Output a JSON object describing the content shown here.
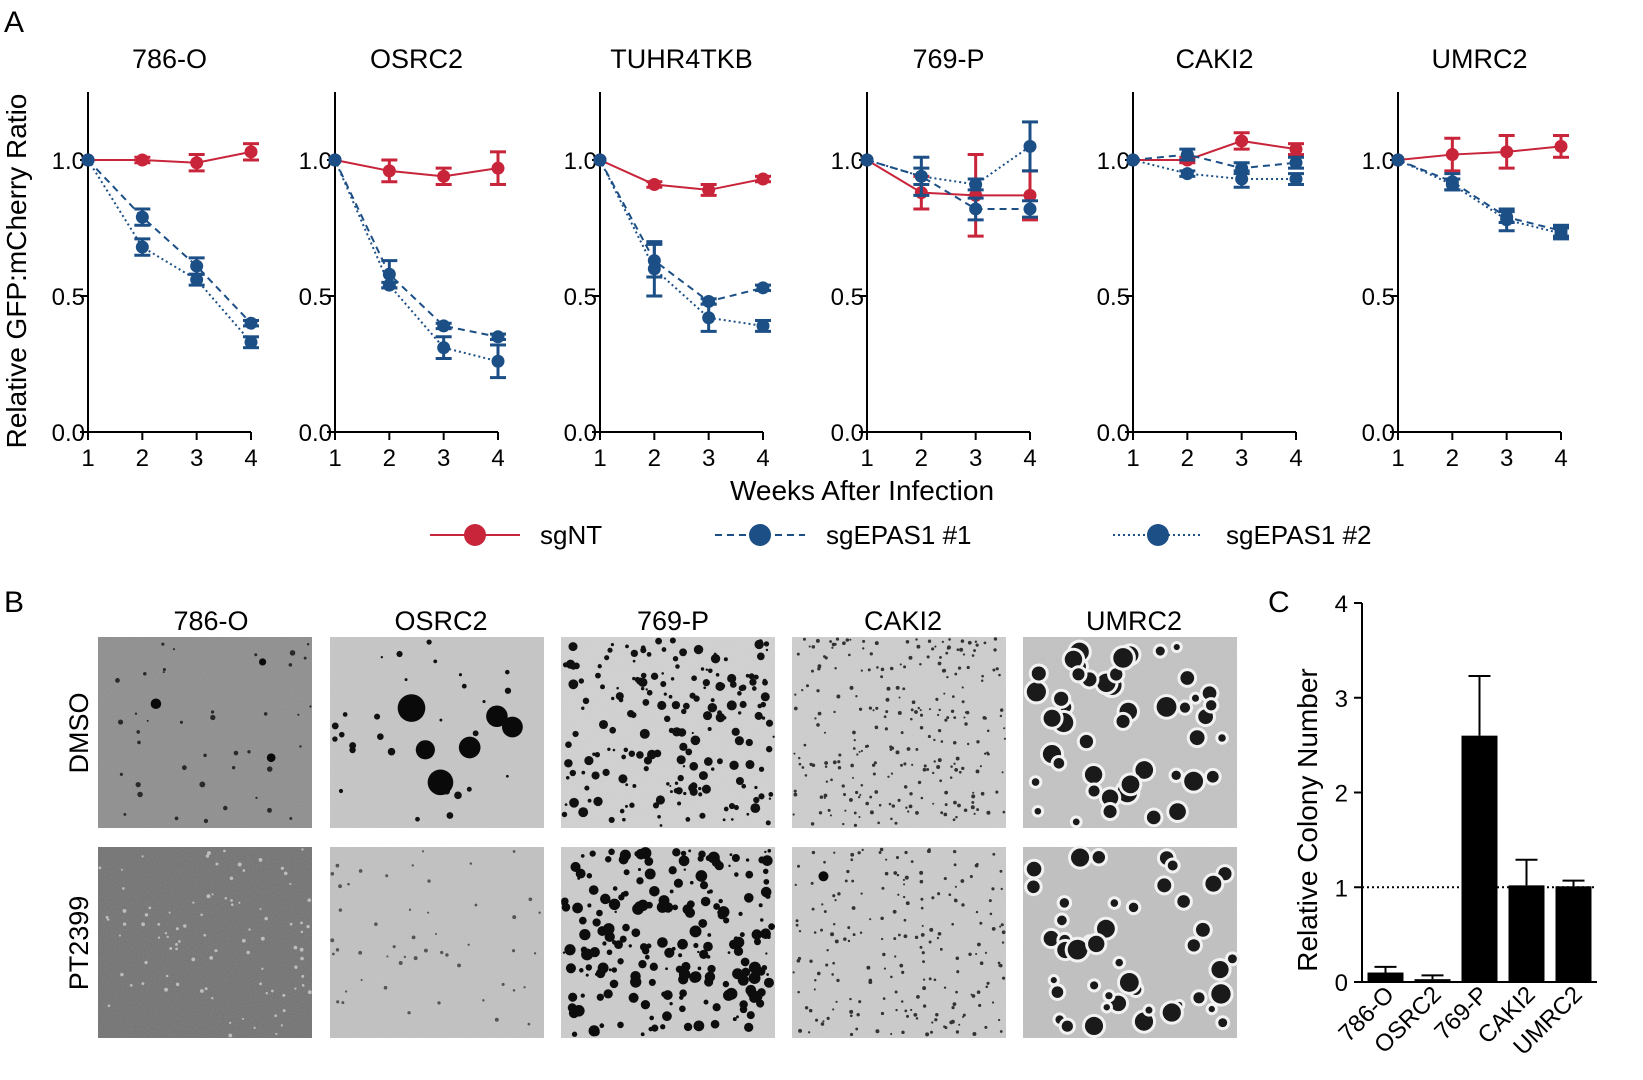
{
  "panel_labels": {
    "a": "A",
    "b": "B",
    "c": "C"
  },
  "colors": {
    "sgNT": "#c8243a",
    "sgEPAS1": "#1b4f86",
    "axis": "#000000"
  },
  "panel_a": {
    "ylabel": "Relative GFP:mCherry Ratio",
    "xlabel": "Weeks After Infection",
    "legend": [
      {
        "name": "sgNT",
        "style": "solid",
        "color": "#c8243a"
      },
      {
        "name": "sgEPAS1 #1",
        "style": "dashed",
        "color": "#1b4f86"
      },
      {
        "name": "sgEPAS1 #2",
        "style": "dotted",
        "color": "#1b4f86"
      }
    ]
  },
  "panel_b": {
    "cell_lines": [
      "786-O",
      "OSRC2",
      "769-P",
      "CAKI2",
      "UMRC2"
    ],
    "conditions": [
      "DMSO",
      "PT2399"
    ]
  },
  "chart_data": [
    {
      "type": "line",
      "title": "786-O",
      "xlabel": "Weeks After Infection",
      "ylabel": "Relative GFP:mCherry Ratio",
      "x": [
        1,
        2,
        3,
        4
      ],
      "xlim": [
        1,
        4
      ],
      "ylim": [
        0,
        1.25
      ],
      "yticks": [
        0.0,
        0.5,
        1.0
      ],
      "yticklabels": [
        "0.0",
        "0.5",
        "1.0"
      ],
      "series": [
        {
          "name": "sgNT",
          "values": [
            1.0,
            1.0,
            0.99,
            1.03
          ],
          "errors": [
            0,
            0.01,
            0.03,
            0.03
          ]
        },
        {
          "name": "sgEPAS1 #1",
          "values": [
            1.0,
            0.79,
            0.61,
            0.4
          ],
          "errors": [
            0,
            0.03,
            0.03,
            0.01
          ]
        },
        {
          "name": "sgEPAS1 #2",
          "values": [
            1.0,
            0.68,
            0.56,
            0.33
          ],
          "errors": [
            0,
            0.03,
            0.02,
            0.02
          ]
        }
      ]
    },
    {
      "type": "line",
      "title": "OSRC2",
      "xlabel": "Weeks After Infection",
      "ylabel": "Relative GFP:mCherry Ratio",
      "x": [
        1,
        2,
        3,
        4
      ],
      "xlim": [
        1,
        4
      ],
      "ylim": [
        0,
        1.25
      ],
      "yticks": [
        0.0,
        0.5,
        1.0
      ],
      "yticklabels": [
        "0.0",
        "0.5",
        "1.0"
      ],
      "series": [
        {
          "name": "sgNT",
          "values": [
            1.0,
            0.96,
            0.94,
            0.97
          ],
          "errors": [
            0,
            0.04,
            0.03,
            0.06
          ]
        },
        {
          "name": "sgEPAS1 #1",
          "values": [
            1.0,
            0.58,
            0.39,
            0.35
          ],
          "errors": [
            0,
            0.05,
            0.01,
            0.01
          ]
        },
        {
          "name": "sgEPAS1 #2",
          "values": [
            1.0,
            0.54,
            0.31,
            0.26
          ],
          "errors": [
            0,
            0.01,
            0.04,
            0.06
          ]
        }
      ]
    },
    {
      "type": "line",
      "title": "TUHR4TKB",
      "xlabel": "Weeks After Infection",
      "ylabel": "Relative GFP:mCherry Ratio",
      "x": [
        1,
        2,
        3,
        4
      ],
      "xlim": [
        1,
        4
      ],
      "ylim": [
        0,
        1.25
      ],
      "yticks": [
        0.0,
        0.5,
        1.0
      ],
      "yticklabels": [
        "0.0",
        "0.5",
        "1.0"
      ],
      "series": [
        {
          "name": "sgNT",
          "values": [
            1.0,
            0.91,
            0.89,
            0.93
          ],
          "errors": [
            0,
            0.01,
            0.02,
            0.01
          ]
        },
        {
          "name": "sgEPAS1 #1",
          "values": [
            1.0,
            0.63,
            0.48,
            0.53
          ],
          "errors": [
            0,
            0.06,
            0.01,
            0.01
          ]
        },
        {
          "name": "sgEPAS1 #2",
          "values": [
            1.0,
            0.6,
            0.42,
            0.39
          ],
          "errors": [
            0,
            0.1,
            0.05,
            0.02
          ]
        }
      ]
    },
    {
      "type": "line",
      "title": "769-P",
      "xlabel": "Weeks After Infection",
      "ylabel": "Relative GFP:mCherry Ratio",
      "x": [
        1,
        2,
        3,
        4
      ],
      "xlim": [
        1,
        4
      ],
      "ylim": [
        0,
        1.25
      ],
      "yticks": [
        0.0,
        0.5,
        1.0
      ],
      "yticklabels": [
        "0.0",
        "0.5",
        "1.0"
      ],
      "series": [
        {
          "name": "sgNT",
          "values": [
            1.0,
            0.88,
            0.87,
            0.87
          ],
          "errors": [
            0,
            0.06,
            0.15,
            0.09
          ]
        },
        {
          "name": "sgEPAS1 #1",
          "values": [
            1.0,
            0.94,
            0.82,
            0.82
          ],
          "errors": [
            0,
            0.07,
            0.04,
            0.03
          ]
        },
        {
          "name": "sgEPAS1 #2",
          "values": [
            1.0,
            0.94,
            0.91,
            1.05
          ],
          "errors": [
            0,
            0.03,
            0.02,
            0.09
          ]
        }
      ]
    },
    {
      "type": "line",
      "title": "CAKI2",
      "xlabel": "Weeks After Infection",
      "ylabel": "Relative GFP:mCherry Ratio",
      "x": [
        1,
        2,
        3,
        4
      ],
      "xlim": [
        1,
        4
      ],
      "ylim": [
        0,
        1.25
      ],
      "yticks": [
        0.0,
        0.5,
        1.0
      ],
      "yticklabels": [
        "0.0",
        "0.5",
        "1.0"
      ],
      "series": [
        {
          "name": "sgNT",
          "values": [
            1.0,
            1.0,
            1.07,
            1.04
          ],
          "errors": [
            0,
            0.01,
            0.03,
            0.02
          ]
        },
        {
          "name": "sgEPAS1 #1",
          "values": [
            1.0,
            1.02,
            0.97,
            0.99
          ],
          "errors": [
            0,
            0.02,
            0.02,
            0.02
          ]
        },
        {
          "name": "sgEPAS1 #2",
          "values": [
            1.0,
            0.95,
            0.93,
            0.93
          ],
          "errors": [
            0,
            0.01,
            0.03,
            0.02
          ]
        }
      ]
    },
    {
      "type": "line",
      "title": "UMRC2",
      "xlabel": "Weeks After Infection",
      "ylabel": "Relative GFP:mCherry Ratio",
      "x": [
        1,
        2,
        3,
        4
      ],
      "xlim": [
        1,
        4
      ],
      "ylim": [
        0,
        1.25
      ],
      "yticks": [
        0.0,
        0.5,
        1.0
      ],
      "yticklabels": [
        "0.0",
        "0.5",
        "1.0"
      ],
      "series": [
        {
          "name": "sgNT",
          "values": [
            1.0,
            1.02,
            1.03,
            1.05
          ],
          "errors": [
            0,
            0.06,
            0.06,
            0.04
          ]
        },
        {
          "name": "sgEPAS1 #1",
          "values": [
            1.0,
            0.92,
            0.79,
            0.74
          ],
          "errors": [
            0,
            0.03,
            0.02,
            0.02
          ]
        },
        {
          "name": "sgEPAS1 #2",
          "values": [
            1.0,
            0.91,
            0.78,
            0.73
          ],
          "errors": [
            0,
            0.02,
            0.04,
            0.02
          ]
        }
      ]
    },
    {
      "type": "bar",
      "title": "",
      "xlabel": "",
      "ylabel": "Relative Colony Number",
      "categories": [
        "786-O",
        "OSRC2",
        "769-P",
        "CAKI2",
        "UMRC2"
      ],
      "values": [
        0.1,
        0.03,
        2.6,
        1.02,
        1.01
      ],
      "errors": [
        0.06,
        0.04,
        0.63,
        0.27,
        0.06
      ],
      "ylim": [
        0,
        4
      ],
      "yticks": [
        0,
        1,
        2,
        3,
        4
      ],
      "yticklabels": [
        "0",
        "1",
        "2",
        "3",
        "4"
      ],
      "reference_line": 1
    }
  ]
}
